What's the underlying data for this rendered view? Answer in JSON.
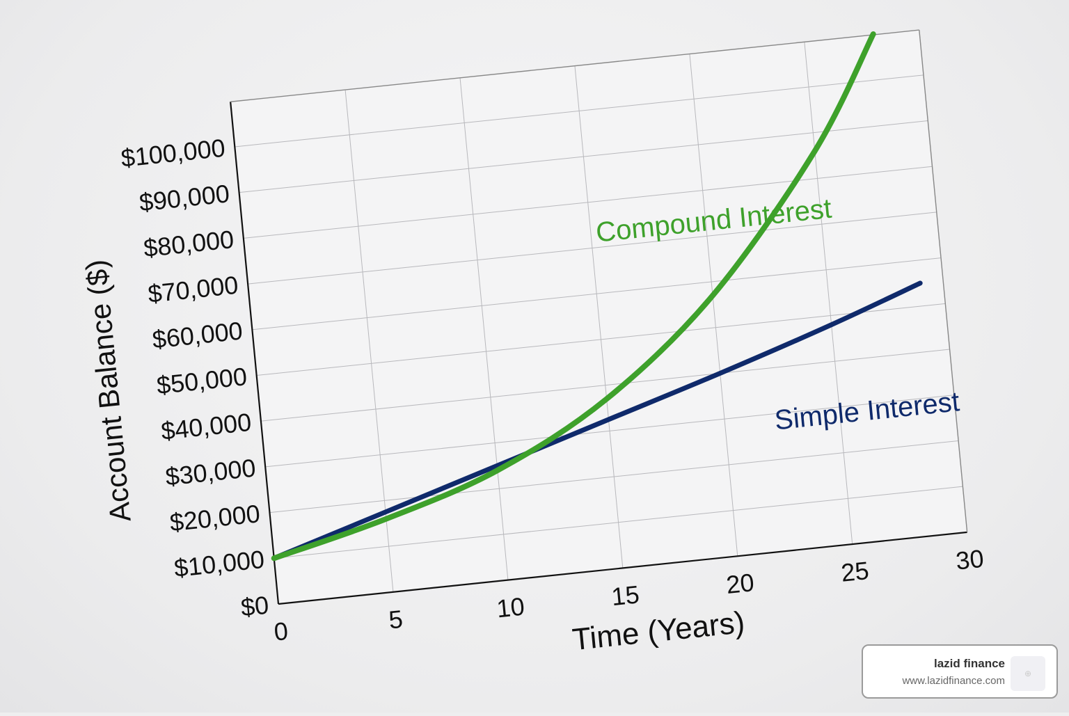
{
  "chart_data": {
    "type": "line",
    "title": "",
    "xlabel": "Time (Years)",
    "ylabel": "Account Balance ($)",
    "x_ticks": [
      "0",
      "5",
      "10",
      "15",
      "20",
      "25",
      "30"
    ],
    "y_ticks": [
      "$0",
      "$10,000",
      "$20,000",
      "$30,000",
      "$40,000",
      "$50,000",
      "$60,000",
      "$70,000",
      "$80,000",
      "$90,000",
      "$100,000"
    ],
    "xlim": [
      0,
      30
    ],
    "ylim": [
      0,
      110000
    ],
    "grid": true,
    "legend": "inline labels",
    "x": [
      0,
      5,
      10,
      15,
      20,
      25,
      28,
      29
    ],
    "series": [
      {
        "name": "Compound Interest",
        "color": "#3ea12b",
        "x": [
          0,
          5,
          10,
          15,
          20,
          25,
          28
        ],
        "values": [
          10000,
          16000,
          24000,
          37000,
          57000,
          86000,
          110000
        ]
      },
      {
        "name": "Simple Interest",
        "color": "#0f2a6b",
        "x": [
          0,
          5,
          10,
          15,
          20,
          25,
          29
        ],
        "values": [
          10000,
          17500,
          25000,
          32500,
          40000,
          48000,
          55000
        ]
      }
    ],
    "annotations": [
      {
        "text": "Compound Interest",
        "color": "#3ea12b"
      },
      {
        "text": "Simple Interest",
        "color": "#0f2a6b"
      }
    ]
  },
  "labels": {
    "compound": "Compound Interest",
    "simple": "Simple Interest",
    "xlabel": "Time (Years)",
    "ylabel": "Account Balance ($)"
  },
  "badge": {
    "name": "lazid finance",
    "url": "www.lazidfinance.com"
  }
}
